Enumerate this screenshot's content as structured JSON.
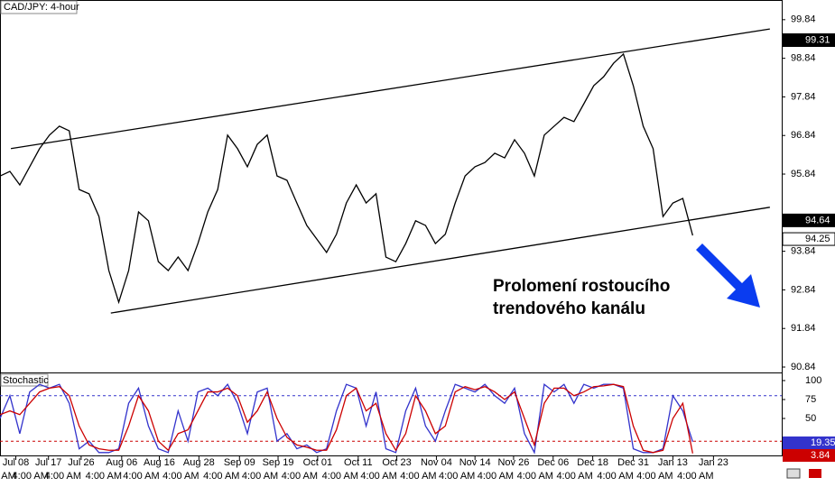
{
  "chart_data": [
    {
      "type": "line",
      "title": "CAD/JPY: 4-hour",
      "color": "#000000",
      "x": [
        0,
        1,
        2,
        3,
        4,
        5,
        6,
        7,
        8,
        9,
        10,
        11,
        12,
        13,
        14,
        15,
        16,
        17,
        18,
        19,
        20,
        21,
        22,
        23,
        24,
        25,
        26,
        27,
        28,
        29,
        30,
        31,
        32,
        33,
        34,
        35,
        36,
        37,
        38,
        39,
        40,
        41,
        42,
        43,
        44,
        45,
        46,
        47,
        48,
        49,
        50,
        51,
        52,
        53,
        54,
        55,
        56,
        57,
        58,
        59,
        60,
        61,
        62,
        63,
        64,
        65,
        66,
        67,
        68,
        69,
        70
      ],
      "values": [
        95.79,
        95.91,
        95.56,
        96.03,
        96.5,
        96.85,
        97.08,
        96.96,
        95.44,
        95.33,
        94.74,
        93.34,
        92.52,
        93.34,
        94.86,
        94.63,
        93.57,
        93.34,
        93.69,
        93.34,
        94.04,
        94.86,
        95.44,
        96.85,
        96.5,
        96.03,
        96.61,
        96.85,
        95.79,
        95.68,
        95.09,
        94.51,
        94.16,
        93.81,
        94.28,
        95.09,
        95.56,
        95.09,
        95.33,
        93.69,
        93.57,
        94.04,
        94.63,
        94.51,
        94.04,
        94.28,
        95.09,
        95.79,
        96.03,
        96.14,
        96.38,
        96.26,
        96.73,
        96.38,
        95.79,
        96.85,
        97.08,
        97.31,
        97.2,
        97.66,
        98.13,
        98.36,
        98.71,
        98.95,
        98.13,
        97.08,
        96.5,
        94.74,
        95.09,
        95.21,
        94.25
      ],
      "xlim": [
        0,
        79
      ],
      "xticks": [
        {
          "value": 1.6,
          "label": "Jul 08"
        },
        {
          "value": 4.9,
          "label": "Jul 17"
        },
        {
          "value": 8.2,
          "label": "Jul 26"
        },
        {
          "value": 12.3,
          "label": "Aug 06"
        },
        {
          "value": 16.1,
          "label": "Aug 16"
        },
        {
          "value": 20.1,
          "label": "Aug 28"
        },
        {
          "value": 24.2,
          "label": "Sep 09"
        },
        {
          "value": 28.1,
          "label": "Sep 19"
        },
        {
          "value": 32.1,
          "label": "Oct 01"
        },
        {
          "value": 36.2,
          "label": "Oct 11"
        },
        {
          "value": 40.1,
          "label": "Oct 23"
        },
        {
          "value": 44.1,
          "label": "Nov 04"
        },
        {
          "value": 48.0,
          "label": "Nov 14"
        },
        {
          "value": 51.9,
          "label": "Nov 26"
        },
        {
          "value": 55.9,
          "label": "Dec 06"
        },
        {
          "value": 59.9,
          "label": "Dec 18"
        },
        {
          "value": 64.0,
          "label": "Dec 31"
        },
        {
          "value": 68.0,
          "label": "Jan 13"
        },
        {
          "value": 72.1,
          "label": "Jan 23"
        }
      ],
      "xtick_time_label": "4:00 AM",
      "ylim": [
        90.7,
        100.35
      ],
      "yticks": [
        99.84,
        98.84,
        97.84,
        96.84,
        95.84,
        93.84,
        92.84,
        91.84,
        90.84
      ],
      "price_markers": [
        99.31,
        94.64,
        94.25
      ],
      "trendlines": [
        {
          "start": [
            1.1,
            96.5
          ],
          "end": [
            77.8,
            99.6
          ]
        },
        {
          "start": [
            11.2,
            92.24
          ],
          "end": [
            77.8,
            94.98
          ]
        }
      ],
      "annotation": [
        "Prolomení rostoucího",
        "trendového kanálu"
      ]
    },
    {
      "type": "line",
      "title": "Stochastic",
      "ylim": [
        0,
        109.5
      ],
      "yticks": [
        100,
        75,
        50
      ],
      "levels": [
        {
          "value": 80,
          "color": "#3333cc"
        },
        {
          "value": 20,
          "color": "#cc0000"
        }
      ],
      "series": [
        {
          "color": "#3333cc",
          "values": [
            50,
            80,
            30,
            85,
            95,
            90,
            95,
            70,
            10,
            20,
            5,
            5,
            10,
            70,
            90,
            40,
            10,
            5,
            60,
            20,
            85,
            90,
            80,
            95,
            70,
            30,
            85,
            90,
            20,
            30,
            10,
            15,
            5,
            10,
            60,
            95,
            90,
            40,
            85,
            10,
            5,
            60,
            90,
            40,
            20,
            60,
            95,
            90,
            85,
            95,
            80,
            70,
            90,
            30,
            5,
            95,
            85,
            95,
            70,
            95,
            90,
            95,
            95,
            90,
            10,
            5,
            5,
            10,
            80,
            60,
            19.35
          ]
        },
        {
          "color": "#cc0000",
          "values": [
            55,
            60,
            55,
            70,
            85,
            90,
            92,
            80,
            40,
            15,
            10,
            8,
            8,
            40,
            80,
            60,
            20,
            8,
            30,
            35,
            60,
            85,
            85,
            90,
            80,
            45,
            60,
            85,
            50,
            25,
            15,
            12,
            8,
            8,
            35,
            80,
            90,
            60,
            70,
            30,
            8,
            30,
            80,
            60,
            30,
            40,
            85,
            92,
            88,
            92,
            85,
            75,
            85,
            50,
            15,
            70,
            90,
            90,
            80,
            85,
            92,
            93,
            95,
            92,
            40,
            8,
            5,
            8,
            50,
            70,
            3.84
          ]
        }
      ]
    }
  ]
}
